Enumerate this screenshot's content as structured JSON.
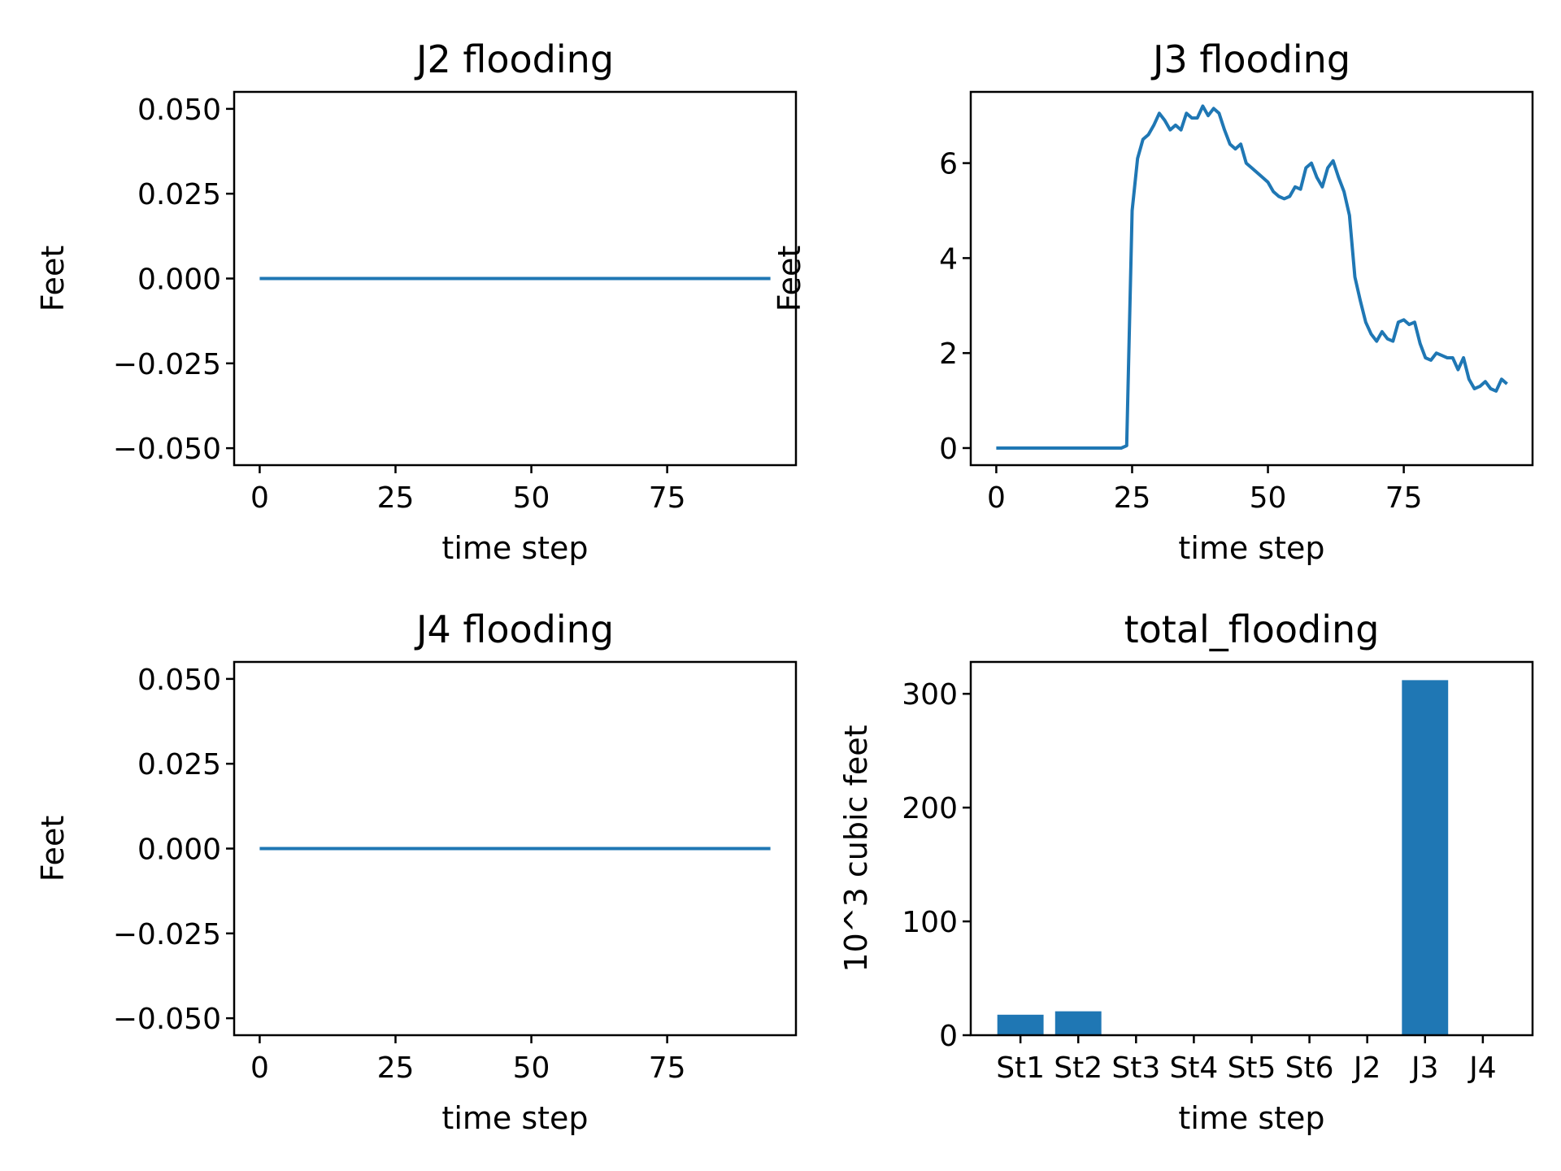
{
  "chart_data": [
    {
      "type": "line",
      "title": "J2 flooding",
      "xlabel": "time step",
      "ylabel": "Feet",
      "xlim": [
        -4.7,
        98.7
      ],
      "ylim": [
        -0.055,
        0.055
      ],
      "xticks": [
        0,
        25,
        50,
        75
      ],
      "yticks": [
        -0.05,
        -0.025,
        0.0,
        0.025,
        0.05
      ],
      "ytick_labels": [
        "−0.050",
        "−0.025",
        "0.000",
        "0.025",
        "0.050"
      ],
      "series": [
        {
          "color": "#1f77b4",
          "x": [
            0,
            94
          ],
          "y": [
            0,
            0
          ]
        }
      ]
    },
    {
      "type": "line",
      "title": "J3 flooding",
      "xlabel": "time step",
      "ylabel": "Feet",
      "xlim": [
        -4.7,
        98.7
      ],
      "ylim": [
        -0.36,
        7.5
      ],
      "xticks": [
        0,
        25,
        50,
        75
      ],
      "yticks": [
        0,
        2,
        4,
        6
      ],
      "ytick_labels": [
        "0",
        "2",
        "4",
        "6"
      ],
      "series": [
        {
          "color": "#1f77b4",
          "x": [
            0,
            1,
            2,
            3,
            4,
            5,
            6,
            7,
            8,
            9,
            10,
            11,
            12,
            13,
            14,
            15,
            16,
            17,
            18,
            19,
            20,
            21,
            22,
            23,
            24,
            25,
            26,
            27,
            28,
            29,
            30,
            31,
            32,
            33,
            34,
            35,
            36,
            37,
            38,
            39,
            40,
            41,
            42,
            43,
            44,
            45,
            46,
            47,
            48,
            49,
            50,
            51,
            52,
            53,
            54,
            55,
            56,
            57,
            58,
            59,
            60,
            61,
            62,
            63,
            64,
            65,
            66,
            67,
            68,
            69,
            70,
            71,
            72,
            73,
            74,
            75,
            76,
            77,
            78,
            79,
            80,
            81,
            82,
            83,
            84,
            85,
            86,
            87,
            88,
            89,
            90,
            91,
            92,
            93,
            94
          ],
          "y": [
            0,
            0,
            0,
            0,
            0,
            0,
            0,
            0,
            0,
            0,
            0,
            0,
            0,
            0,
            0,
            0,
            0,
            0,
            0,
            0,
            0,
            0,
            0,
            0,
            0.05,
            5.0,
            6.1,
            6.5,
            6.6,
            6.8,
            7.05,
            6.9,
            6.7,
            6.8,
            6.7,
            7.05,
            6.95,
            6.95,
            7.2,
            7.0,
            7.15,
            7.05,
            6.7,
            6.4,
            6.3,
            6.4,
            6.0,
            5.9,
            5.8,
            5.7,
            5.6,
            5.4,
            5.3,
            5.25,
            5.3,
            5.5,
            5.45,
            5.9,
            6.0,
            5.7,
            5.5,
            5.9,
            6.05,
            5.7,
            5.4,
            4.9,
            3.6,
            3.1,
            2.65,
            2.4,
            2.25,
            2.45,
            2.3,
            2.25,
            2.65,
            2.7,
            2.6,
            2.65,
            2.2,
            1.9,
            1.85,
            2.0,
            1.95,
            1.9,
            1.9,
            1.65,
            1.9,
            1.45,
            1.25,
            1.3,
            1.4,
            1.25,
            1.2,
            1.45,
            1.35
          ]
        }
      ]
    },
    {
      "type": "line",
      "title": "J4 flooding",
      "xlabel": "time step",
      "ylabel": "Feet",
      "xlim": [
        -4.7,
        98.7
      ],
      "ylim": [
        -0.055,
        0.055
      ],
      "xticks": [
        0,
        25,
        50,
        75
      ],
      "yticks": [
        -0.05,
        -0.025,
        0.0,
        0.025,
        0.05
      ],
      "ytick_labels": [
        "−0.050",
        "−0.025",
        "0.000",
        "0.025",
        "0.050"
      ],
      "series": [
        {
          "color": "#1f77b4",
          "x": [
            0,
            94
          ],
          "y": [
            0,
            0
          ]
        }
      ]
    },
    {
      "type": "bar",
      "title": "total_flooding",
      "xlabel": "time step",
      "ylabel": "10^3 cubic feet",
      "ylim": [
        0,
        328
      ],
      "yticks": [
        0,
        100,
        200,
        300
      ],
      "ytick_labels": [
        "0",
        "100",
        "200",
        "300"
      ],
      "color": "#1f77b4",
      "categories": [
        "St1",
        "St2",
        "St3",
        "St4",
        "St5",
        "St6",
        "J2",
        "J3",
        "J4"
      ],
      "values": [
        18,
        21,
        0,
        0,
        0,
        0,
        0,
        312,
        0
      ]
    }
  ]
}
